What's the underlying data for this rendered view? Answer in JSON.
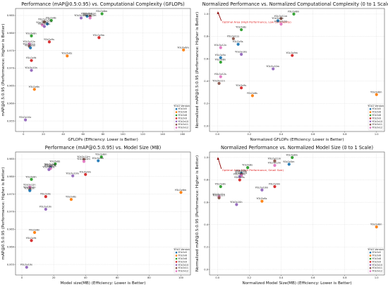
{
  "colors": {
    "YOLOv5": "#1f77b4",
    "YOLOv6": "#ff7f0e",
    "YOLOv8": "#2ca02c",
    "YOLOv9": "#d62728",
    "YOLOv10": "#9467bd",
    "YOLOv11": "#8c564b",
    "YOLOv12": "#e377c2"
  },
  "legend": {
    "title": "YOLO Version",
    "items": [
      "YOLOv5",
      "YOLOv6",
      "YOLOv8",
      "YOLOv9",
      "YOLOv10",
      "YOLOv11",
      "YOLOv12"
    ]
  },
  "chart_data": [
    {
      "id": "perf-vs-gflops",
      "type": "scatter",
      "title": "Performance (mAP@0.5:0.95) vs. Computational Complexity (GFLOPs)",
      "xlabel": "GFLOPs (Efficiency: Lower is Better)",
      "ylabel": "mAP@0.5:0.95 (Performance: Higher is Better)",
      "xlim": [
        -8,
        168
      ],
      "ylim": [
        0.952,
        0.987
      ],
      "xticks": [
        0,
        20,
        40,
        60,
        80,
        100,
        120,
        140,
        160
      ],
      "yticks": [
        0.955,
        0.96,
        0.965,
        0.97,
        0.975,
        0.98,
        0.985
      ],
      "grid": true,
      "legend_position": "bottom-right",
      "points": [
        {
          "label": "YOLOv8m",
          "series": "YOLOv8",
          "x": 79,
          "y": 0.9855
        },
        {
          "label": "YOLOv11m",
          "series": "YOLOv11",
          "x": 67,
          "y": 0.9848
        },
        {
          "label": "YOLOv5m",
          "series": "YOLOv5",
          "x": 64,
          "y": 0.9848
        },
        {
          "label": "YOLOv12m",
          "series": "YOLOv12",
          "x": 67,
          "y": 0.9843
        },
        {
          "label": "YOLOv10m",
          "series": "YOLOv10",
          "x": 58,
          "y": 0.9843
        },
        {
          "label": "YOLOv8s",
          "series": "YOLOv8",
          "x": 28,
          "y": 0.9836
        },
        {
          "label": "YOLOv11s",
          "series": "YOLOv11",
          "x": 21,
          "y": 0.9832
        },
        {
          "label": "YOLOv5s",
          "series": "YOLOv5",
          "x": 24,
          "y": 0.9826
        },
        {
          "label": "YOLOv12s",
          "series": "YOLOv12",
          "x": 19,
          "y": 0.9823
        },
        {
          "label": "YOLOv10s",
          "series": "YOLOv10",
          "x": 21,
          "y": 0.9819
        },
        {
          "label": "YOLOv9m",
          "series": "YOLOv9",
          "x": 76,
          "y": 0.9787
        },
        {
          "label": "YOLOv9s",
          "series": "YOLOv9",
          "x": 26,
          "y": 0.9775
        },
        {
          "label": "YOLOv8n",
          "series": "YOLOv8",
          "x": 8,
          "y": 0.9792
        },
        {
          "label": "YOLOv12n",
          "series": "YOLOv12",
          "x": 6,
          "y": 0.9769
        },
        {
          "label": "YOLOv11n",
          "series": "YOLOv11",
          "x": 6,
          "y": 0.9762
        },
        {
          "label": "YOLOv5n",
          "series": "YOLOv5",
          "x": 7,
          "y": 0.9758
        },
        {
          "label": "YOLOv6m",
          "series": "YOLOv6",
          "x": 161,
          "y": 0.9752
        },
        {
          "label": "YOLOv6s",
          "series": "YOLOv6",
          "x": 44,
          "y": 0.9735
        },
        {
          "label": "YOLOv9t",
          "series": "YOLOv9",
          "x": 8,
          "y": 0.9722
        },
        {
          "label": "YOLOv10n",
          "series": "YOLOv10",
          "x": 8,
          "y": 0.9694
        },
        {
          "label": "YOLOv6n",
          "series": "YOLOv6",
          "x": 11,
          "y": 0.964
        },
        {
          "label": "YOLOv10x",
          "series": "YOLOv10",
          "x": 2,
          "y": 0.9553
        }
      ]
    },
    {
      "id": "norm-perf-vs-gflops",
      "type": "scatter",
      "title": "Normalized Performance vs. Normalized Computational Complexity (0 to 1 Scale)",
      "xlabel": "Normalized GFLOPs (Efficiency: Lower is Better)",
      "ylabel": "Normalized mAP@0.5:0.95 (Performance: Higher is Better)",
      "xlim": [
        -0.05,
        1.05
      ],
      "ylim": [
        -0.05,
        1.05
      ],
      "xticks": [
        0.0,
        0.2,
        0.4,
        0.6,
        0.8,
        1.0
      ],
      "yticks": [
        0.0,
        0.2,
        0.4,
        0.6,
        0.8,
        1.0
      ],
      "grid": true,
      "legend_position": "bottom-right",
      "annotation": {
        "text": "Optimal Area (High Performance, Low Complexity)",
        "x": 0.02,
        "y": 0.93,
        "arrow_to": [
          0.0,
          1.02
        ]
      },
      "points": [
        {
          "label": "YOLOv8m",
          "series": "YOLOv8",
          "x": 0.48,
          "y": 1.0
        },
        {
          "label": "YOLOv11m",
          "series": "YOLOv11",
          "x": 0.4,
          "y": 0.96
        },
        {
          "label": "YOLOv5m",
          "series": "YOLOv5",
          "x": 0.38,
          "y": 0.94
        },
        {
          "label": "YOLOv12m",
          "series": "YOLOv12",
          "x": 0.4,
          "y": 0.91
        },
        {
          "label": "YOLOv8s",
          "series": "YOLOv8",
          "x": 0.15,
          "y": 0.86
        },
        {
          "label": "YOLOv12n",
          "series": "YOLOv12",
          "x": 0.02,
          "y": 0.7
        },
        {
          "label": "YOLOv5n",
          "series": "YOLOv5",
          "x": 0.02,
          "y": 0.61
        },
        {
          "label": "YOLOv8n",
          "series": "YOLOv8",
          "x": 0.02,
          "y": 0.57
        },
        {
          "label": "YOLOv10s",
          "series": "YOLOv10",
          "x": 0.15,
          "y": 0.64
        },
        {
          "label": "YOLOv5s",
          "series": "YOLOv5",
          "x": 0.13,
          "y": 0.73
        },
        {
          "label": "YOLOv11s",
          "series": "YOLOv11",
          "x": 0.1,
          "y": 0.78
        },
        {
          "label": "YOLOv9m",
          "series": "YOLOv9",
          "x": 0.47,
          "y": 0.63
        },
        {
          "label": "YOLOv10m",
          "series": "YOLOv10",
          "x": 0.35,
          "y": 0.51
        },
        {
          "label": "YOLOv12s",
          "series": "YOLOv12",
          "x": 0.02,
          "y": 0.44
        },
        {
          "label": "YOLOv9s",
          "series": "YOLOv9",
          "x": 0.15,
          "y": 0.34
        },
        {
          "label": "YOLOv6s",
          "series": "YOLOv6",
          "x": 0.22,
          "y": 0.27
        },
        {
          "label": "YOLOv6m",
          "series": "YOLOv6",
          "x": 1.0,
          "y": 0.28
        },
        {
          "label": "YOLOv11n",
          "series": "YOLOv11",
          "x": 0.01,
          "y": 0.38
        }
      ]
    },
    {
      "id": "perf-vs-size",
      "type": "scatter",
      "title": "Performance (mAP@0.5:0.95) vs. Model Size (MB)",
      "xlabel": "Model size(MB) (Efficiency: Lower is Better)",
      "ylabel": "mAP@0.5:0.95 (Performance: Higher is Better)",
      "xlim": [
        -4,
        106
      ],
      "ylim": [
        0.952,
        0.987
      ],
      "xticks": [
        0,
        20,
        40,
        60,
        80,
        100
      ],
      "yticks": [
        0.955,
        0.96,
        0.965,
        0.97,
        0.975,
        0.98,
        0.985
      ],
      "grid": true,
      "legend_position": "bottom-right",
      "points": [
        {
          "label": "YOLOv8m",
          "series": "YOLOv8",
          "x": 50,
          "y": 0.9856
        },
        {
          "label": "YOLOv11m",
          "series": "YOLOv11",
          "x": 39,
          "y": 0.9849
        },
        {
          "label": "YOLOv5m",
          "series": "YOLOv5",
          "x": 48,
          "y": 0.9845
        },
        {
          "label": "YOLOv12m",
          "series": "YOLOv12",
          "x": 39,
          "y": 0.9843
        },
        {
          "label": "YOLOv8s",
          "series": "YOLOv8",
          "x": 21,
          "y": 0.9836
        },
        {
          "label": "YOLOv11s",
          "series": "YOLOv11",
          "x": 18,
          "y": 0.9828
        },
        {
          "label": "YOLOv5s",
          "series": "YOLOv5",
          "x": 18,
          "y": 0.9826
        },
        {
          "label": "YOLOv12s",
          "series": "YOLOv12",
          "x": 18,
          "y": 0.9823
        },
        {
          "label": "YOLOv10s",
          "series": "YOLOv10",
          "x": 17,
          "y": 0.982
        },
        {
          "label": "YOLOv10m",
          "series": "YOLOv10",
          "x": 32,
          "y": 0.9802
        },
        {
          "label": "YOLOv9m",
          "series": "YOLOv9",
          "x": 40,
          "y": 0.9806
        },
        {
          "label": "YOLOv8n",
          "series": "YOLOv8",
          "x": 6,
          "y": 0.9792
        },
        {
          "label": "YOLOv12n",
          "series": "YOLOv12",
          "x": 5,
          "y": 0.977
        },
        {
          "label": "YOLOv11n",
          "series": "YOLOv11",
          "x": 5,
          "y": 0.9763
        },
        {
          "label": "YOLOv5n",
          "series": "YOLOv5",
          "x": 5,
          "y": 0.976
        },
        {
          "label": "YOLOv6m",
          "series": "YOLOv6",
          "x": 100,
          "y": 0.9755
        },
        {
          "label": "YOLOv9s",
          "series": "YOLOv9",
          "x": 15,
          "y": 0.9743
        },
        {
          "label": "YOLOv6s",
          "series": "YOLOv6",
          "x": 31,
          "y": 0.9735
        },
        {
          "label": "YOLOv10n",
          "series": "YOLOv10",
          "x": 15,
          "y": 0.9707
        },
        {
          "label": "YOLOv6n",
          "series": "YOLOv6",
          "x": 8,
          "y": 0.9641
        },
        {
          "label": "YOLOv9t",
          "series": "YOLOv9",
          "x": 6,
          "y": 0.9618
        },
        {
          "label": "YOLOv10x",
          "series": "YOLOv10",
          "x": 3,
          "y": 0.9542
        }
      ]
    },
    {
      "id": "norm-perf-vs-size",
      "type": "scatter",
      "title": "Normalized Performance vs. Normalized Model Size (0 to 1 Scale)",
      "xlabel": "Normalized Model Size(MB) (Efficiency: Lower is Better)",
      "ylabel": "Normalized mAP@0.5:0.95 (Performance: Higher is Better)",
      "xlim": [
        -0.05,
        1.05
      ],
      "ylim": [
        -0.05,
        1.05
      ],
      "xticks": [
        0.0,
        0.2,
        0.4,
        0.6,
        0.8,
        1.0
      ],
      "yticks": [
        0.0,
        0.2,
        0.4,
        0.6,
        0.8,
        1.0
      ],
      "grid": true,
      "legend_position": "bottom-right",
      "annotation": {
        "text": "Optimal Area (High Performance, Small Size)",
        "x": 0.02,
        "y": 0.89,
        "arrow_to": [
          0.0,
          1.0
        ]
      },
      "points": [
        {
          "label": "YOLOv8m",
          "series": "YOLOv8",
          "x": 0.47,
          "y": 1.0
        },
        {
          "label": "YOLOv11m",
          "series": "YOLOv11",
          "x": 0.36,
          "y": 0.97
        },
        {
          "label": "YOLOv5m",
          "series": "YOLOv5",
          "x": 0.45,
          "y": 0.94
        },
        {
          "label": "YOLOv12m",
          "series": "YOLOv12",
          "x": 0.36,
          "y": 0.93
        },
        {
          "label": "YOLOv8s",
          "series": "YOLOv8",
          "x": 0.19,
          "y": 0.91
        },
        {
          "label": "YOLOv5s",
          "series": "YOLOv5",
          "x": 0.15,
          "y": 0.86
        },
        {
          "label": "YOLOv11s",
          "series": "YOLOv11",
          "x": 0.15,
          "y": 0.85
        },
        {
          "label": "YOLOv12s",
          "series": "YOLOv12",
          "x": 0.15,
          "y": 0.84
        },
        {
          "label": "YOLOv10s",
          "series": "YOLOv10",
          "x": 0.14,
          "y": 0.83
        },
        {
          "label": "YOLOv9s",
          "series": "YOLOv9",
          "x": 0.14,
          "y": 0.8
        },
        {
          "label": "YOLOv8n",
          "series": "YOLOv8",
          "x": 0.02,
          "y": 0.74
        },
        {
          "label": "YOLOv9m",
          "series": "YOLOv9",
          "x": 0.36,
          "y": 0.74
        },
        {
          "label": "YOLOv10m",
          "series": "YOLOv10",
          "x": 0.28,
          "y": 0.71
        },
        {
          "label": "YOLOv12n",
          "series": "YOLOv12",
          "x": 0.01,
          "y": 0.65
        },
        {
          "label": "YOLOv11n",
          "series": "YOLOv11",
          "x": 0.01,
          "y": 0.64
        },
        {
          "label": "YOLOv6s",
          "series": "YOLOv6",
          "x": 0.28,
          "y": 0.61
        },
        {
          "label": "YOLOv10n",
          "series": "YOLOv10",
          "x": 0.12,
          "y": 0.58
        },
        {
          "label": "YOLOv6m",
          "series": "YOLOv6",
          "x": 1.0,
          "y": 0.38
        }
      ]
    }
  ]
}
